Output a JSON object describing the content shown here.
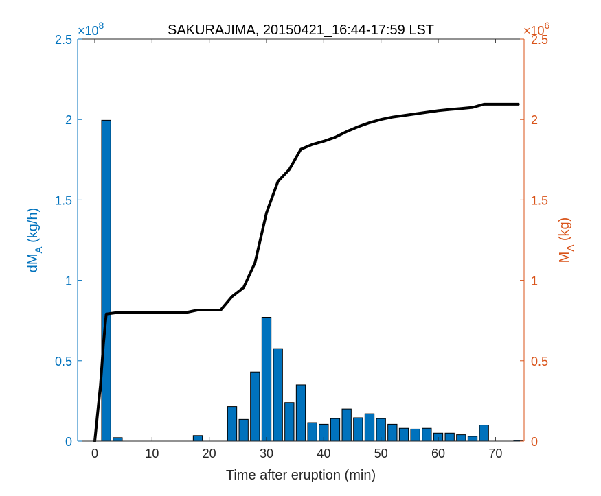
{
  "chart_data": {
    "type": "bar",
    "title": "SAKURAJIMA, 20150421_16:44-17:59 LST",
    "xlabel": "Time after eruption (min)",
    "ylabel_left": {
      "main": "dM",
      "sub": "A",
      "unit": " (kg/h)"
    },
    "ylabel_right": {
      "main": "M",
      "sub": "A",
      "unit": " (kg)"
    },
    "left_exponent": {
      "base": "×10",
      "power": "8"
    },
    "right_exponent": {
      "base": "×10",
      "power": "6"
    },
    "xlim": [
      -3,
      75
    ],
    "ylim_left": [
      0,
      2.5
    ],
    "ylim_right": [
      0,
      2.5
    ],
    "x_ticks": [
      0,
      10,
      20,
      30,
      40,
      50,
      60,
      70
    ],
    "y_ticks": [
      0,
      0.5,
      1,
      1.5,
      2,
      2.5
    ],
    "y_tick_labels": [
      "0",
      "0.5",
      "1",
      "1.5",
      "2",
      "2.5"
    ],
    "grid": false,
    "colors": {
      "bars": "#0072bd",
      "left_axis": "#0072bd",
      "right_axis": "#d95319",
      "line": "#000000"
    },
    "bar_series": {
      "x": [
        2,
        4,
        18,
        24,
        26,
        28,
        30,
        32,
        34,
        36,
        38,
        40,
        42,
        44,
        46,
        48,
        50,
        52,
        54,
        56,
        58,
        60,
        62,
        64,
        66,
        68,
        74
      ],
      "values": [
        1.995,
        0.022,
        0.035,
        0.215,
        0.135,
        0.43,
        0.77,
        0.575,
        0.24,
        0.35,
        0.115,
        0.105,
        0.14,
        0.2,
        0.145,
        0.17,
        0.14,
        0.105,
        0.08,
        0.075,
        0.08,
        0.05,
        0.05,
        0.04,
        0.03,
        0.1,
        0.005
      ]
    },
    "line_series": {
      "x": [
        0,
        1,
        1.5,
        2,
        4,
        16,
        18,
        20,
        22,
        24,
        26,
        28,
        30,
        32,
        34,
        36,
        38,
        40,
        42,
        44,
        46,
        48,
        50,
        52,
        54,
        56,
        58,
        60,
        62,
        64,
        66,
        68,
        70,
        72,
        74
      ],
      "values": [
        0,
        0.35,
        0.6,
        0.79,
        0.8,
        0.8,
        0.815,
        0.815,
        0.815,
        0.9,
        0.955,
        1.11,
        1.42,
        1.615,
        1.69,
        1.815,
        1.845,
        1.865,
        1.89,
        1.925,
        1.955,
        1.98,
        2.0,
        2.015,
        2.025,
        2.035,
        2.045,
        2.055,
        2.062,
        2.068,
        2.075,
        2.095,
        2.095,
        2.095,
        2.095
      ]
    }
  }
}
